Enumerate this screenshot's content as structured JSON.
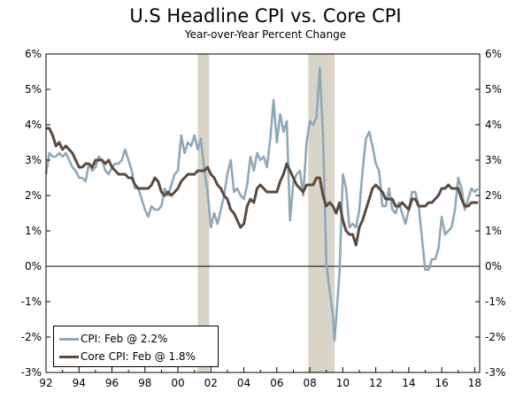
{
  "chart_data": {
    "type": "line",
    "title": "U.S Headline CPI vs. Core CPI",
    "subtitle": "Year-over-Year Percent Change",
    "ylim": [
      -3,
      6
    ],
    "xlim": [
      1992,
      2018.3
    ],
    "x_tick_labels": [
      "92",
      "94",
      "96",
      "98",
      "00",
      "02",
      "04",
      "06",
      "08",
      "10",
      "12",
      "14",
      "16",
      "18"
    ],
    "y_tick_labels": [
      "6%",
      "5%",
      "4%",
      "3%",
      "2%",
      "1%",
      "0%",
      "-1%",
      "-2%",
      "-3%"
    ],
    "grid": false,
    "zero_line": true,
    "legend_position": "bottom-left",
    "recessions": [
      {
        "start": 2001.2,
        "end": 2001.9
      },
      {
        "start": 2007.9,
        "end": 2009.5
      }
    ],
    "colors": {
      "cpi": "#8fa8b8",
      "core": "#5a4a40",
      "recession": "#d8d4c8"
    },
    "series": [
      {
        "name": "CPI: Feb @ 2.2%",
        "points": [
          [
            1992.0,
            2.6
          ],
          [
            1992.2,
            3.2
          ],
          [
            1992.4,
            3.1
          ],
          [
            1992.6,
            3.1
          ],
          [
            1992.8,
            3.2
          ],
          [
            1993.0,
            3.1
          ],
          [
            1993.2,
            3.2
          ],
          [
            1993.4,
            3.0
          ],
          [
            1993.6,
            2.8
          ],
          [
            1993.8,
            2.7
          ],
          [
            1994.0,
            2.5
          ],
          [
            1994.2,
            2.5
          ],
          [
            1994.4,
            2.4
          ],
          [
            1994.6,
            2.9
          ],
          [
            1994.8,
            2.7
          ],
          [
            1995.0,
            2.8
          ],
          [
            1995.2,
            3.1
          ],
          [
            1995.4,
            3.0
          ],
          [
            1995.6,
            2.7
          ],
          [
            1995.8,
            2.6
          ],
          [
            1996.0,
            2.8
          ],
          [
            1996.2,
            2.9
          ],
          [
            1996.4,
            2.9
          ],
          [
            1996.6,
            3.0
          ],
          [
            1996.8,
            3.3
          ],
          [
            1997.0,
            3.0
          ],
          [
            1997.2,
            2.7
          ],
          [
            1997.4,
            2.2
          ],
          [
            1997.6,
            2.2
          ],
          [
            1997.8,
            1.9
          ],
          [
            1998.0,
            1.6
          ],
          [
            1998.2,
            1.4
          ],
          [
            1998.4,
            1.7
          ],
          [
            1998.6,
            1.6
          ],
          [
            1998.8,
            1.6
          ],
          [
            1999.0,
            1.7
          ],
          [
            1999.2,
            2.2
          ],
          [
            1999.4,
            2.0
          ],
          [
            1999.6,
            2.3
          ],
          [
            1999.8,
            2.6
          ],
          [
            2000.0,
            2.7
          ],
          [
            2000.2,
            3.7
          ],
          [
            2000.4,
            3.2
          ],
          [
            2000.6,
            3.5
          ],
          [
            2000.8,
            3.4
          ],
          [
            2001.0,
            3.7
          ],
          [
            2001.2,
            3.3
          ],
          [
            2001.4,
            3.6
          ],
          [
            2001.6,
            2.7
          ],
          [
            2001.8,
            2.1
          ],
          [
            2002.0,
            1.1
          ],
          [
            2002.2,
            1.5
          ],
          [
            2002.4,
            1.2
          ],
          [
            2002.6,
            1.6
          ],
          [
            2002.8,
            2.0
          ],
          [
            2003.0,
            2.6
          ],
          [
            2003.2,
            3.0
          ],
          [
            2003.4,
            2.1
          ],
          [
            2003.6,
            2.2
          ],
          [
            2003.8,
            2.0
          ],
          [
            2004.0,
            1.9
          ],
          [
            2004.2,
            2.3
          ],
          [
            2004.4,
            3.1
          ],
          [
            2004.6,
            2.7
          ],
          [
            2004.8,
            3.2
          ],
          [
            2005.0,
            3.0
          ],
          [
            2005.2,
            3.1
          ],
          [
            2005.4,
            2.8
          ],
          [
            2005.6,
            3.6
          ],
          [
            2005.8,
            4.7
          ],
          [
            2006.0,
            3.5
          ],
          [
            2006.2,
            4.3
          ],
          [
            2006.4,
            3.8
          ],
          [
            2006.6,
            4.1
          ],
          [
            2006.8,
            1.3
          ],
          [
            2007.0,
            2.4
          ],
          [
            2007.2,
            2.6
          ],
          [
            2007.4,
            2.7
          ],
          [
            2007.6,
            2.0
          ],
          [
            2007.8,
            3.5
          ],
          [
            2008.0,
            4.1
          ],
          [
            2008.2,
            4.0
          ],
          [
            2008.4,
            4.2
          ],
          [
            2008.6,
            5.6
          ],
          [
            2008.8,
            3.7
          ],
          [
            2009.0,
            0.1
          ],
          [
            2009.2,
            -0.7
          ],
          [
            2009.4,
            -1.4
          ],
          [
            2009.5,
            -2.1
          ],
          [
            2009.8,
            -0.2
          ],
          [
            2010.0,
            2.6
          ],
          [
            2010.2,
            2.2
          ],
          [
            2010.4,
            1.1
          ],
          [
            2010.6,
            1.2
          ],
          [
            2010.8,
            1.1
          ],
          [
            2011.0,
            1.6
          ],
          [
            2011.2,
            2.7
          ],
          [
            2011.4,
            3.6
          ],
          [
            2011.6,
            3.8
          ],
          [
            2011.8,
            3.4
          ],
          [
            2012.0,
            2.9
          ],
          [
            2012.2,
            2.7
          ],
          [
            2012.4,
            1.7
          ],
          [
            2012.6,
            1.7
          ],
          [
            2012.8,
            2.2
          ],
          [
            2013.0,
            1.6
          ],
          [
            2013.2,
            1.5
          ],
          [
            2013.4,
            1.8
          ],
          [
            2013.6,
            1.5
          ],
          [
            2013.8,
            1.2
          ],
          [
            2014.0,
            1.6
          ],
          [
            2014.2,
            2.1
          ],
          [
            2014.4,
            2.1
          ],
          [
            2014.6,
            1.7
          ],
          [
            2014.8,
            0.8
          ],
          [
            2015.0,
            -0.1
          ],
          [
            2015.2,
            -0.1
          ],
          [
            2015.4,
            0.2
          ],
          [
            2015.6,
            0.2
          ],
          [
            2015.8,
            0.5
          ],
          [
            2016.0,
            1.4
          ],
          [
            2016.2,
            0.9
          ],
          [
            2016.4,
            1.0
          ],
          [
            2016.6,
            1.1
          ],
          [
            2016.8,
            1.6
          ],
          [
            2017.0,
            2.5
          ],
          [
            2017.2,
            2.2
          ],
          [
            2017.4,
            1.6
          ],
          [
            2017.6,
            1.9
          ],
          [
            2017.8,
            2.2
          ],
          [
            2018.0,
            2.1
          ],
          [
            2018.2,
            2.2
          ]
        ]
      },
      {
        "name": "Core CPI: Feb @ 1.8%",
        "points": [
          [
            1992.0,
            3.9
          ],
          [
            1992.2,
            3.9
          ],
          [
            1992.4,
            3.7
          ],
          [
            1992.6,
            3.4
          ],
          [
            1992.8,
            3.5
          ],
          [
            1993.0,
            3.3
          ],
          [
            1993.2,
            3.4
          ],
          [
            1993.4,
            3.3
          ],
          [
            1993.6,
            3.2
          ],
          [
            1993.8,
            3.0
          ],
          [
            1994.0,
            2.8
          ],
          [
            1994.2,
            2.8
          ],
          [
            1994.4,
            2.9
          ],
          [
            1994.6,
            2.9
          ],
          [
            1994.8,
            2.8
          ],
          [
            1995.0,
            3.0
          ],
          [
            1995.2,
            3.0
          ],
          [
            1995.4,
            3.0
          ],
          [
            1995.6,
            2.9
          ],
          [
            1995.8,
            3.0
          ],
          [
            1996.0,
            2.8
          ],
          [
            1996.2,
            2.7
          ],
          [
            1996.4,
            2.6
          ],
          [
            1996.6,
            2.6
          ],
          [
            1996.8,
            2.6
          ],
          [
            1997.0,
            2.5
          ],
          [
            1997.2,
            2.5
          ],
          [
            1997.4,
            2.3
          ],
          [
            1997.6,
            2.2
          ],
          [
            1997.8,
            2.2
          ],
          [
            1998.0,
            2.2
          ],
          [
            1998.2,
            2.2
          ],
          [
            1998.4,
            2.3
          ],
          [
            1998.6,
            2.5
          ],
          [
            1998.8,
            2.4
          ],
          [
            1999.0,
            2.1
          ],
          [
            1999.2,
            2.0
          ],
          [
            1999.4,
            2.1
          ],
          [
            1999.6,
            2.0
          ],
          [
            1999.8,
            2.1
          ],
          [
            2000.0,
            2.2
          ],
          [
            2000.2,
            2.4
          ],
          [
            2000.4,
            2.5
          ],
          [
            2000.6,
            2.6
          ],
          [
            2000.8,
            2.6
          ],
          [
            2001.0,
            2.6
          ],
          [
            2001.2,
            2.7
          ],
          [
            2001.4,
            2.7
          ],
          [
            2001.6,
            2.7
          ],
          [
            2001.8,
            2.8
          ],
          [
            2002.0,
            2.6
          ],
          [
            2002.2,
            2.5
          ],
          [
            2002.4,
            2.3
          ],
          [
            2002.6,
            2.2
          ],
          [
            2002.8,
            2.0
          ],
          [
            2003.0,
            1.9
          ],
          [
            2003.2,
            1.6
          ],
          [
            2003.4,
            1.5
          ],
          [
            2003.6,
            1.3
          ],
          [
            2003.8,
            1.1
          ],
          [
            2004.0,
            1.2
          ],
          [
            2004.2,
            1.7
          ],
          [
            2004.4,
            1.9
          ],
          [
            2004.6,
            1.8
          ],
          [
            2004.8,
            2.2
          ],
          [
            2005.0,
            2.3
          ],
          [
            2005.2,
            2.2
          ],
          [
            2005.4,
            2.1
          ],
          [
            2005.6,
            2.1
          ],
          [
            2005.8,
            2.1
          ],
          [
            2006.0,
            2.1
          ],
          [
            2006.2,
            2.4
          ],
          [
            2006.4,
            2.6
          ],
          [
            2006.6,
            2.9
          ],
          [
            2006.8,
            2.7
          ],
          [
            2007.0,
            2.5
          ],
          [
            2007.2,
            2.3
          ],
          [
            2007.4,
            2.2
          ],
          [
            2007.6,
            2.1
          ],
          [
            2007.8,
            2.3
          ],
          [
            2008.0,
            2.3
          ],
          [
            2008.2,
            2.3
          ],
          [
            2008.4,
            2.5
          ],
          [
            2008.6,
            2.5
          ],
          [
            2008.8,
            2.0
          ],
          [
            2009.0,
            1.7
          ],
          [
            2009.2,
            1.8
          ],
          [
            2009.4,
            1.7
          ],
          [
            2009.6,
            1.5
          ],
          [
            2009.8,
            1.8
          ],
          [
            2010.0,
            1.3
          ],
          [
            2010.2,
            1.0
          ],
          [
            2010.4,
            0.9
          ],
          [
            2010.6,
            0.9
          ],
          [
            2010.8,
            0.6
          ],
          [
            2011.0,
            1.1
          ],
          [
            2011.2,
            1.3
          ],
          [
            2011.4,
            1.6
          ],
          [
            2011.6,
            1.9
          ],
          [
            2011.8,
            2.2
          ],
          [
            2012.0,
            2.3
          ],
          [
            2012.2,
            2.2
          ],
          [
            2012.4,
            2.1
          ],
          [
            2012.6,
            1.9
          ],
          [
            2012.8,
            1.9
          ],
          [
            2013.0,
            1.9
          ],
          [
            2013.2,
            1.7
          ],
          [
            2013.4,
            1.7
          ],
          [
            2013.6,
            1.8
          ],
          [
            2013.8,
            1.7
          ],
          [
            2014.0,
            1.6
          ],
          [
            2014.2,
            1.9
          ],
          [
            2014.4,
            1.9
          ],
          [
            2014.6,
            1.7
          ],
          [
            2014.8,
            1.7
          ],
          [
            2015.0,
            1.7
          ],
          [
            2015.2,
            1.8
          ],
          [
            2015.4,
            1.8
          ],
          [
            2015.6,
            1.9
          ],
          [
            2015.8,
            2.0
          ],
          [
            2016.0,
            2.2
          ],
          [
            2016.2,
            2.2
          ],
          [
            2016.4,
            2.3
          ],
          [
            2016.6,
            2.2
          ],
          [
            2016.8,
            2.2
          ],
          [
            2017.0,
            2.2
          ],
          [
            2017.2,
            1.9
          ],
          [
            2017.4,
            1.7
          ],
          [
            2017.6,
            1.7
          ],
          [
            2017.8,
            1.8
          ],
          [
            2018.0,
            1.8
          ],
          [
            2018.2,
            1.8
          ]
        ]
      }
    ]
  }
}
